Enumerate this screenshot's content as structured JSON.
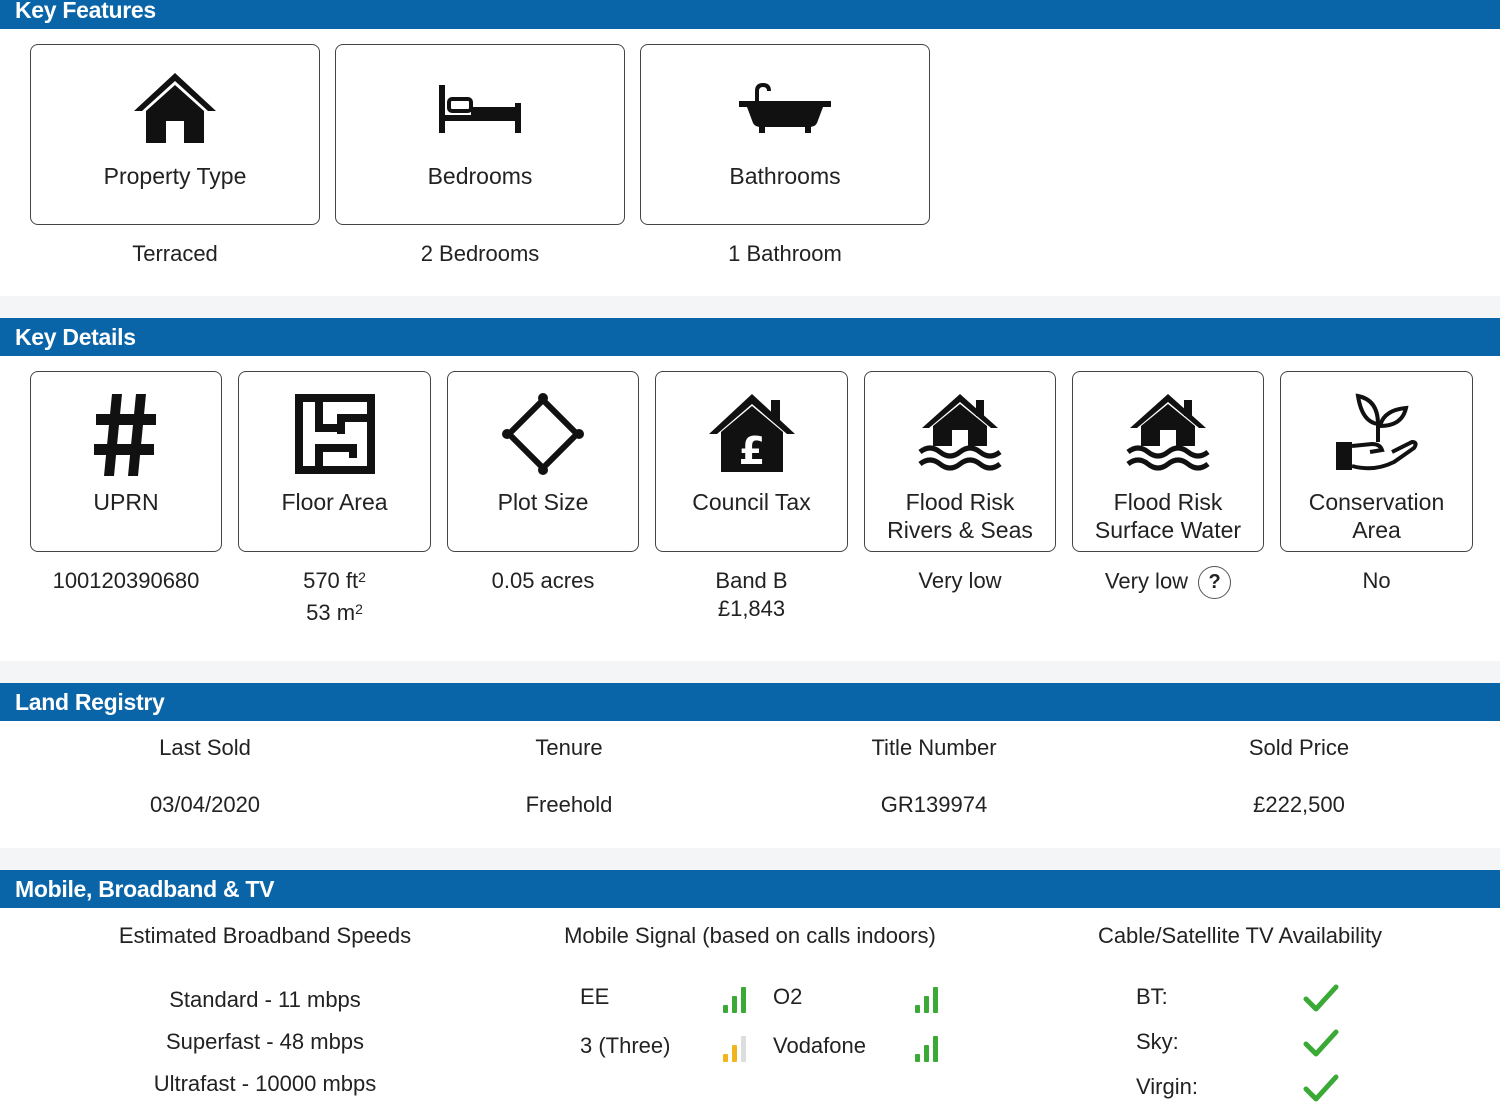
{
  "key_features": {
    "title": "Key Features",
    "cards": [
      {
        "label": "Property Type",
        "value": "Terraced",
        "icon": "house-icon"
      },
      {
        "label": "Bedrooms",
        "value": "2 Bedrooms",
        "icon": "bed-icon"
      },
      {
        "label": "Bathrooms",
        "value": "1 Bathroom",
        "icon": "bathtub-icon"
      }
    ]
  },
  "key_details": {
    "title": "Key Details",
    "uprn": {
      "label": "UPRN",
      "value": "100120390680",
      "icon": "hash-icon"
    },
    "floor_area": {
      "label": "Floor Area",
      "value_ft": "570 ft",
      "value_m": "53 m",
      "sup": "2",
      "icon": "floor-plan-icon"
    },
    "plot_size": {
      "label": "Plot Size",
      "value": "0.05 acres",
      "icon": "plot-diamond-icon"
    },
    "council_tax": {
      "label": "Council Tax",
      "band": "Band B",
      "amount": "£1,843",
      "icon": "house-pound-icon"
    },
    "flood_rivers": {
      "label1": "Flood Risk",
      "label2": "Rivers & Seas",
      "value": "Very low",
      "icon": "flood-house-icon"
    },
    "flood_surface": {
      "label1": "Flood Risk",
      "label2": "Surface Water",
      "value": "Very low",
      "help": "?",
      "icon": "flood-house-icon"
    },
    "conservation": {
      "label1": "Conservation",
      "label2": "Area",
      "value": "No",
      "icon": "hand-plant-icon"
    }
  },
  "land_registry": {
    "title": "Land Registry",
    "columns": [
      {
        "header": "Last Sold",
        "value": "03/04/2020"
      },
      {
        "header": "Tenure",
        "value": "Freehold"
      },
      {
        "header": "Title Number",
        "value": "GR139974"
      },
      {
        "header": "Sold Price",
        "value": "£222,500"
      }
    ]
  },
  "mobile": {
    "title": "Mobile, Broadband & TV",
    "broadband": {
      "header": "Estimated Broadband Speeds",
      "rows": [
        "Standard - 11 mbps",
        "Superfast - 48 mbps",
        "Ultrafast - 10000 mbps"
      ]
    },
    "signal": {
      "header": "Mobile Signal (based on calls indoors)",
      "networks": [
        {
          "name": "EE",
          "level": 3,
          "color": "#3aa935"
        },
        {
          "name": "O2",
          "level": 3,
          "color": "#3aa935"
        },
        {
          "name": "3 (Three)",
          "level": 2,
          "color": "#f0b41c"
        },
        {
          "name": "Vodafone",
          "level": 3,
          "color": "#3aa935"
        }
      ]
    },
    "tv": {
      "header": "Cable/Satellite TV Availability",
      "rows": [
        {
          "name": "BT:",
          "available": true
        },
        {
          "name": "Sky:",
          "available": true
        },
        {
          "name": "Virgin:",
          "available": true
        }
      ]
    }
  }
}
